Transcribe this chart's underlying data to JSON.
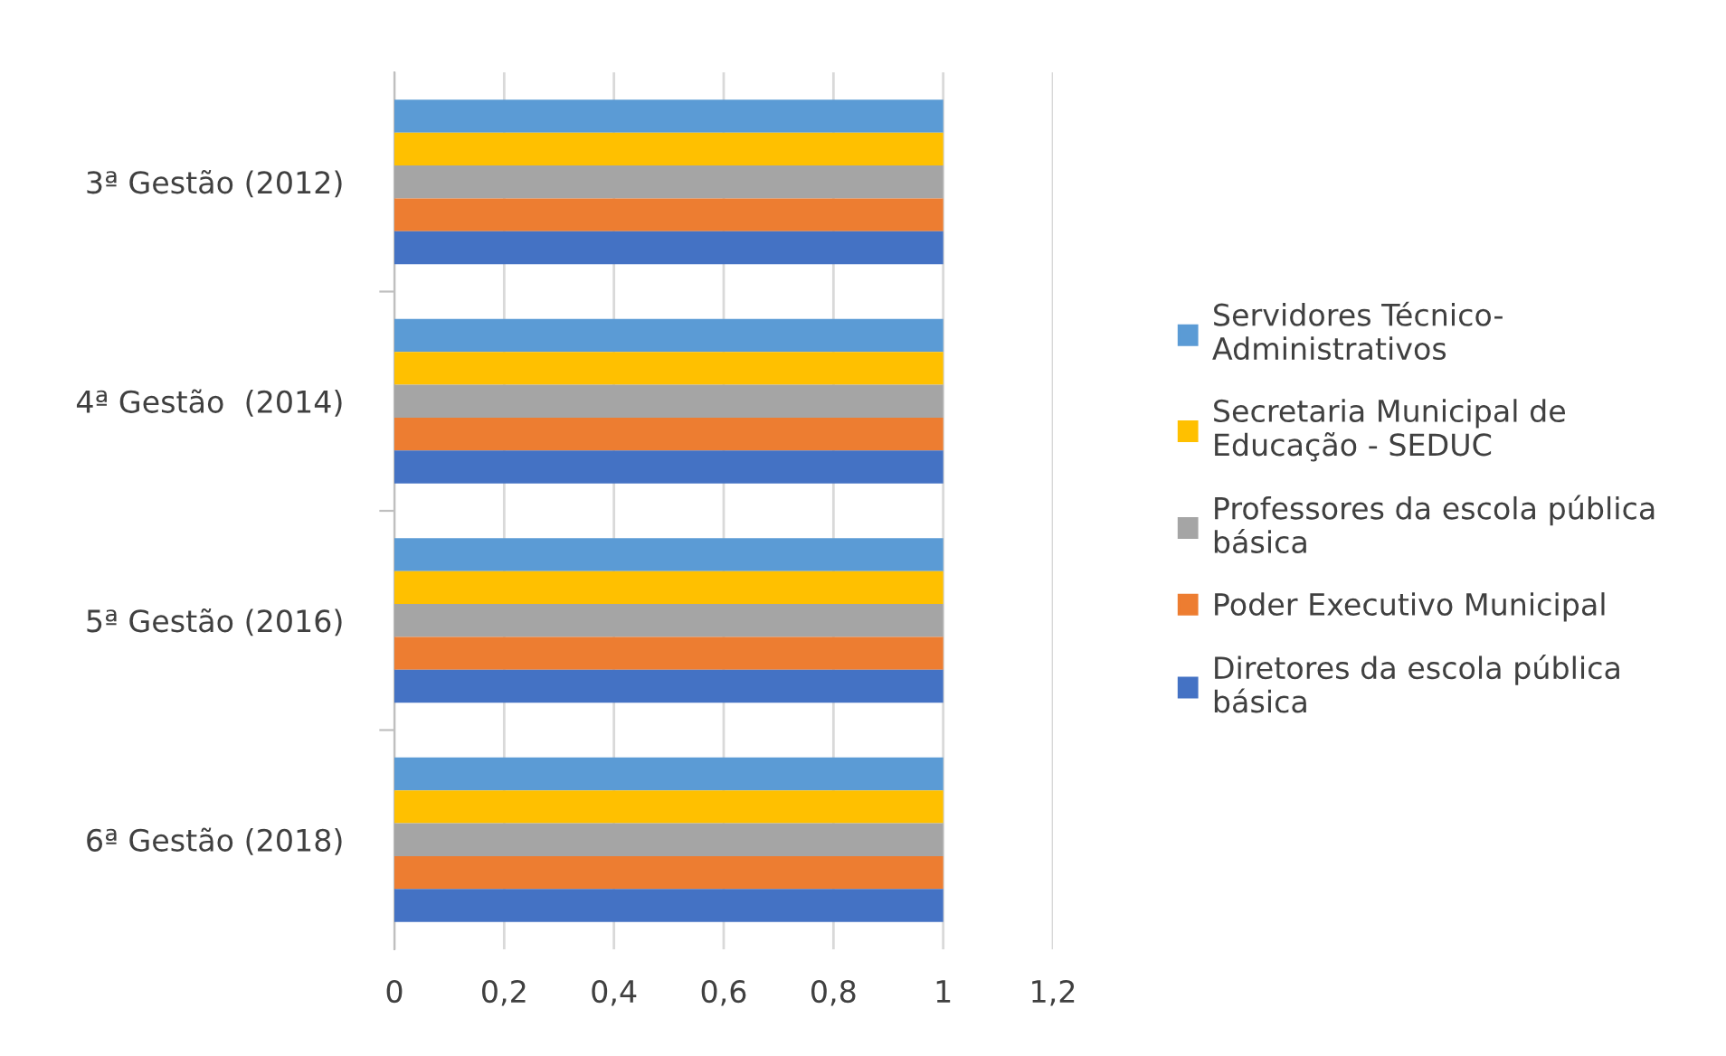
{
  "chart_data": {
    "type": "bar",
    "orientation": "horizontal",
    "categories": [
      "3ª Gestão (2012)",
      "4ª Gestão  (2014)",
      "5ª Gestão (2016)",
      "6ª Gestão (2018)"
    ],
    "series": [
      {
        "name": "Servidores Técnico-\nAdministrativos",
        "color": "#5b9bd5",
        "values": [
          1,
          1,
          1,
          1
        ]
      },
      {
        "name": "Secretaria Municipal de\nEducação - SEDUC",
        "color": "#ffc000",
        "values": [
          1,
          1,
          1,
          1
        ]
      },
      {
        "name": "Professores da escola pública\nbásica",
        "color": "#a5a5a5",
        "values": [
          1,
          1,
          1,
          1
        ]
      },
      {
        "name": "Poder Executivo Municipal",
        "color": "#ed7d31",
        "values": [
          1,
          1,
          1,
          1
        ]
      },
      {
        "name": "Diretores da escola pública\nbásica",
        "color": "#4472c4",
        "values": [
          1,
          1,
          1,
          1
        ]
      }
    ],
    "xlim": [
      0,
      1.2
    ],
    "xticks": [
      0,
      {
        "value": 0.2,
        "label": "0,2"
      },
      {
        "value": 0.4,
        "label": "0,4"
      },
      {
        "value": 0.6,
        "label": "0,6"
      },
      {
        "value": 0.8,
        "label": "0,8"
      },
      1,
      {
        "value": 1.2,
        "label": "1,2"
      }
    ],
    "grid": "x",
    "legend": "right"
  }
}
